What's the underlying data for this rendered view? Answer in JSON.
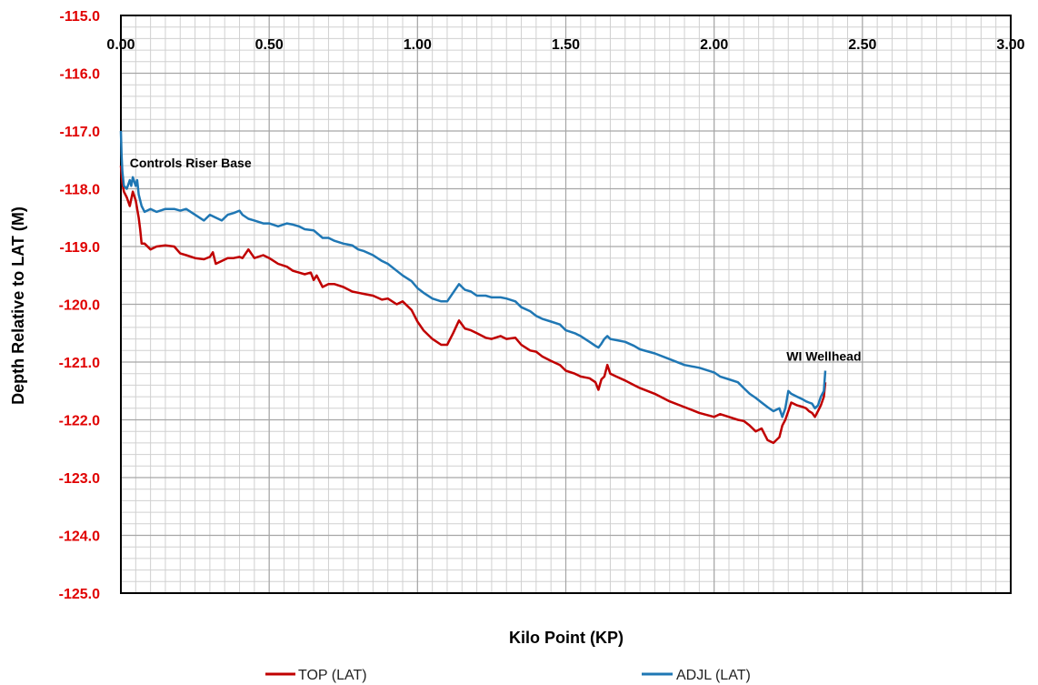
{
  "chart_data": {
    "type": "line",
    "title": "",
    "xlabel": "Kilo Point (KP)",
    "ylabel": "Depth Relative to LAT (M)",
    "xlim": [
      0,
      3
    ],
    "ylim": [
      -125,
      -115
    ],
    "x_ticks": [
      "0.00",
      "0.50",
      "1.00",
      "1.50",
      "2.00",
      "2.50",
      "3.00"
    ],
    "y_ticks": [
      "-115.0",
      "-116.0",
      "-117.0",
      "-118.0",
      "-119.0",
      "-120.0",
      "-121.0",
      "-122.0",
      "-123.0",
      "-124.0",
      "-125.0"
    ],
    "x_axis_position": "top",
    "grid": true,
    "legend_position": "bottom",
    "colors": {
      "ytick": "#e00000",
      "top_series": "#c00000",
      "adjl_series": "#1f77b4",
      "grid_major": "#a6a6a6",
      "grid_minor": "#d0d0d0"
    },
    "annotations": [
      {
        "text": "Controls Riser Base",
        "x": 0.03,
        "y": -117.55
      },
      {
        "text": "WI Wellhead",
        "x": 2.37,
        "y": -120.9
      }
    ],
    "series": [
      {
        "name": "TOP (LAT)",
        "x": [
          0.0,
          0.005,
          0.01,
          0.02,
          0.03,
          0.04,
          0.05,
          0.06,
          0.065,
          0.07,
          0.08,
          0.1,
          0.12,
          0.15,
          0.18,
          0.2,
          0.22,
          0.25,
          0.28,
          0.3,
          0.31,
          0.32,
          0.34,
          0.36,
          0.38,
          0.4,
          0.41,
          0.43,
          0.45,
          0.48,
          0.5,
          0.53,
          0.56,
          0.58,
          0.6,
          0.62,
          0.64,
          0.65,
          0.66,
          0.68,
          0.7,
          0.72,
          0.75,
          0.78,
          0.8,
          0.82,
          0.85,
          0.88,
          0.9,
          0.93,
          0.95,
          0.98,
          1.0,
          1.02,
          1.05,
          1.08,
          1.1,
          1.12,
          1.14,
          1.16,
          1.18,
          1.2,
          1.23,
          1.25,
          1.28,
          1.3,
          1.33,
          1.35,
          1.38,
          1.4,
          1.42,
          1.45,
          1.48,
          1.5,
          1.53,
          1.55,
          1.58,
          1.6,
          1.61,
          1.62,
          1.63,
          1.64,
          1.65,
          1.67,
          1.7,
          1.73,
          1.75,
          1.8,
          1.85,
          1.9,
          1.95,
          2.0,
          2.02,
          2.05,
          2.08,
          2.1,
          2.12,
          2.14,
          2.16,
          2.18,
          2.2,
          2.22,
          2.23,
          2.24,
          2.25,
          2.26,
          2.28,
          2.3,
          2.31,
          2.32,
          2.33,
          2.34,
          2.35,
          2.36,
          2.37,
          2.375
        ],
        "values": [
          -117.6,
          -117.9,
          -118.05,
          -118.15,
          -118.3,
          -118.05,
          -118.2,
          -118.5,
          -118.7,
          -118.95,
          -118.95,
          -119.05,
          -119.0,
          -118.98,
          -119.0,
          -119.12,
          -119.15,
          -119.2,
          -119.22,
          -119.18,
          -119.1,
          -119.3,
          -119.25,
          -119.2,
          -119.2,
          -119.18,
          -119.2,
          -119.05,
          -119.2,
          -119.15,
          -119.2,
          -119.3,
          -119.35,
          -119.42,
          -119.45,
          -119.48,
          -119.45,
          -119.58,
          -119.5,
          -119.7,
          -119.65,
          -119.65,
          -119.7,
          -119.78,
          -119.8,
          -119.82,
          -119.85,
          -119.92,
          -119.9,
          -120.0,
          -119.95,
          -120.1,
          -120.3,
          -120.45,
          -120.6,
          -120.7,
          -120.7,
          -120.5,
          -120.28,
          -120.42,
          -120.45,
          -120.5,
          -120.58,
          -120.6,
          -120.55,
          -120.6,
          -120.58,
          -120.7,
          -120.8,
          -120.82,
          -120.9,
          -120.98,
          -121.05,
          -121.15,
          -121.2,
          -121.25,
          -121.28,
          -121.35,
          -121.48,
          -121.3,
          -121.25,
          -121.05,
          -121.2,
          -121.25,
          -121.32,
          -121.4,
          -121.45,
          -121.55,
          -121.68,
          -121.78,
          -121.88,
          -121.95,
          -121.9,
          -121.95,
          -122.0,
          -122.02,
          -122.1,
          -122.2,
          -122.15,
          -122.35,
          -122.4,
          -122.3,
          -122.1,
          -122.0,
          -121.85,
          -121.7,
          -121.75,
          -121.78,
          -121.8,
          -121.85,
          -121.88,
          -121.95,
          -121.85,
          -121.75,
          -121.6,
          -121.35
        ]
      },
      {
        "name": "ADJL (LAT)",
        "x": [
          0.0,
          0.002,
          0.005,
          0.01,
          0.02,
          0.03,
          0.035,
          0.04,
          0.05,
          0.055,
          0.06,
          0.065,
          0.07,
          0.08,
          0.1,
          0.12,
          0.15,
          0.18,
          0.2,
          0.22,
          0.25,
          0.28,
          0.3,
          0.32,
          0.34,
          0.36,
          0.38,
          0.4,
          0.41,
          0.43,
          0.45,
          0.48,
          0.5,
          0.53,
          0.56,
          0.58,
          0.6,
          0.62,
          0.65,
          0.68,
          0.7,
          0.72,
          0.75,
          0.78,
          0.8,
          0.82,
          0.85,
          0.88,
          0.9,
          0.93,
          0.95,
          0.98,
          1.0,
          1.02,
          1.05,
          1.08,
          1.1,
          1.12,
          1.14,
          1.16,
          1.18,
          1.2,
          1.23,
          1.25,
          1.28,
          1.3,
          1.33,
          1.35,
          1.38,
          1.4,
          1.42,
          1.45,
          1.48,
          1.5,
          1.53,
          1.55,
          1.58,
          1.6,
          1.61,
          1.62,
          1.63,
          1.64,
          1.65,
          1.67,
          1.7,
          1.73,
          1.75,
          1.8,
          1.85,
          1.9,
          1.95,
          2.0,
          2.02,
          2.05,
          2.08,
          2.1,
          2.12,
          2.14,
          2.16,
          2.18,
          2.2,
          2.22,
          2.23,
          2.24,
          2.25,
          2.26,
          2.28,
          2.3,
          2.31,
          2.32,
          2.33,
          2.34,
          2.35,
          2.36,
          2.37,
          2.375
        ],
        "values": [
          -117.0,
          -117.4,
          -117.7,
          -117.95,
          -118.0,
          -117.85,
          -117.95,
          -117.8,
          -117.95,
          -117.85,
          -118.1,
          -118.2,
          -118.3,
          -118.4,
          -118.35,
          -118.4,
          -118.35,
          -118.35,
          -118.38,
          -118.35,
          -118.45,
          -118.55,
          -118.45,
          -118.5,
          -118.55,
          -118.45,
          -118.42,
          -118.38,
          -118.45,
          -118.52,
          -118.55,
          -118.6,
          -118.6,
          -118.65,
          -118.6,
          -118.62,
          -118.65,
          -118.7,
          -118.72,
          -118.85,
          -118.85,
          -118.9,
          -118.95,
          -118.98,
          -119.05,
          -119.08,
          -119.15,
          -119.25,
          -119.3,
          -119.42,
          -119.5,
          -119.6,
          -119.72,
          -119.8,
          -119.9,
          -119.95,
          -119.95,
          -119.8,
          -119.65,
          -119.75,
          -119.78,
          -119.85,
          -119.85,
          -119.88,
          -119.88,
          -119.9,
          -119.95,
          -120.05,
          -120.12,
          -120.2,
          -120.25,
          -120.3,
          -120.35,
          -120.45,
          -120.5,
          -120.55,
          -120.65,
          -120.72,
          -120.75,
          -120.68,
          -120.6,
          -120.55,
          -120.6,
          -120.62,
          -120.65,
          -120.72,
          -120.78,
          -120.85,
          -120.95,
          -121.05,
          -121.1,
          -121.18,
          -121.25,
          -121.3,
          -121.35,
          -121.45,
          -121.55,
          -121.62,
          -121.7,
          -121.78,
          -121.85,
          -121.8,
          -121.95,
          -121.8,
          -121.5,
          -121.55,
          -121.6,
          -121.65,
          -121.68,
          -121.7,
          -121.72,
          -121.8,
          -121.75,
          -121.6,
          -121.5,
          -121.15
        ]
      }
    ]
  }
}
